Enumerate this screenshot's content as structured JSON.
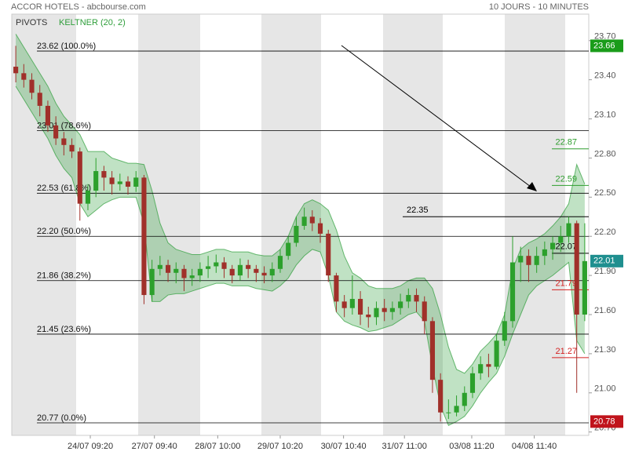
{
  "chart_data": {
    "type": "candlestick",
    "title": "ACCOR HOTELS - abcbourse.com",
    "subtitle": "10 JOURS - 10 MINUTES",
    "legend": [
      "PIVOTS",
      "KELTNER (20, 2)"
    ],
    "up_color": "#2ca02c",
    "down_color": "#a0302a",
    "band_color": "#2e9e3a",
    "xlim": [
      -0.5,
      71.5
    ],
    "xticks": [
      {
        "value": 9.3,
        "label": "24/07 09:20"
      },
      {
        "value": 17.3,
        "label": "27/07 09:40"
      },
      {
        "value": 25.2,
        "label": "28/07 10:00"
      },
      {
        "value": 33,
        "label": "29/07 10:20"
      },
      {
        "value": 40.9,
        "label": "30/07 10:40"
      },
      {
        "value": 48.5,
        "label": "31/07 11:00"
      },
      {
        "value": 56.9,
        "label": "03/08 11:20"
      },
      {
        "value": 64.7,
        "label": "04/08 11:40"
      }
    ],
    "ylim": [
      20.674,
      23.903
    ],
    "yticks": [
      {
        "value": 23.7,
        "label": "23.70"
      },
      {
        "value": 23.4,
        "label": "23.40"
      },
      {
        "value": 23.1,
        "label": "23.10"
      },
      {
        "value": 22.8,
        "label": "22.80"
      },
      {
        "value": 22.5,
        "label": "22.50"
      },
      {
        "value": 22.2,
        "label": "22.20"
      },
      {
        "value": 21.9,
        "label": "21.90"
      },
      {
        "value": 21.6,
        "label": "21.60"
      },
      {
        "value": 21.3,
        "label": "21.30"
      },
      {
        "value": 21.0,
        "label": "21.00"
      },
      {
        "value": 20.7,
        "label": "20.70"
      }
    ],
    "open": [
      23.5,
      23.45,
      23.4,
      23.3,
      23.2,
      23.05,
      22.95,
      22.9,
      22.85,
      22.45,
      22.55,
      22.7,
      22.65,
      22.6,
      22.62,
      22.58,
      22.65,
      21.75,
      21.95,
      21.98,
      21.92,
      21.95,
      21.88,
      21.9,
      21.95,
      21.97,
      22.0,
      21.95,
      21.9,
      21.98,
      21.95,
      21.92,
      21.9,
      21.95,
      22.05,
      22.15,
      22.28,
      22.35,
      22.3,
      22.22,
      21.9,
      21.7,
      21.65,
      21.72,
      21.6,
      21.58,
      21.65,
      21.62,
      21.65,
      21.7,
      21.75,
      21.7,
      21.55,
      21.1,
      20.85,
      20.85,
      20.9,
      21.0,
      21.15,
      21.22,
      21.2,
      21.4,
      21.55,
      22.0,
      22.05,
      21.98,
      22.05,
      22.1,
      22.15,
      22.2,
      22.3,
      21.6
    ],
    "high": [
      23.66,
      23.52,
      23.45,
      23.36,
      23.24,
      23.12,
      23.0,
      22.95,
      22.88,
      22.6,
      22.8,
      22.74,
      22.7,
      22.68,
      22.66,
      22.7,
      22.67,
      22.02,
      22.05,
      22.02,
      22.0,
      21.98,
      21.95,
      22.0,
      22.05,
      22.06,
      22.04,
      21.98,
      22.03,
      22.02,
      21.98,
      21.97,
      22.0,
      22.1,
      22.2,
      22.35,
      22.42,
      22.4,
      22.34,
      22.25,
      21.92,
      21.75,
      21.9,
      21.78,
      21.66,
      21.7,
      21.72,
      21.7,
      21.76,
      21.8,
      21.8,
      21.74,
      21.58,
      21.15,
      20.95,
      20.98,
      21.05,
      21.2,
      21.28,
      21.3,
      21.45,
      21.62,
      22.2,
      22.12,
      22.1,
      22.12,
      22.16,
      22.2,
      22.28,
      22.35,
      22.32,
      22.3
    ],
    "low": [
      23.38,
      23.34,
      23.25,
      23.12,
      23.0,
      22.9,
      22.82,
      22.8,
      22.32,
      22.4,
      22.5,
      22.55,
      22.52,
      22.55,
      22.52,
      22.54,
      21.68,
      21.7,
      21.9,
      21.85,
      21.84,
      21.78,
      21.82,
      21.85,
      21.88,
      21.92,
      21.88,
      21.84,
      21.86,
      21.88,
      21.85,
      21.84,
      21.85,
      21.92,
      22.02,
      22.12,
      22.25,
      22.24,
      22.15,
      21.85,
      21.62,
      21.58,
      21.6,
      21.52,
      21.5,
      21.52,
      21.55,
      21.56,
      21.6,
      21.65,
      21.62,
      21.45,
      21.0,
      20.78,
      20.8,
      20.82,
      20.86,
      20.96,
      21.1,
      21.12,
      21.18,
      21.36,
      21.5,
      21.85,
      21.85,
      21.92,
      21.98,
      22.02,
      22.08,
      22.15,
      21.0,
      21.55
    ],
    "close": [
      23.45,
      23.4,
      23.3,
      23.2,
      23.05,
      22.95,
      22.9,
      22.85,
      22.45,
      22.55,
      22.7,
      22.65,
      22.6,
      22.62,
      22.58,
      22.65,
      21.75,
      21.95,
      21.98,
      21.92,
      21.95,
      21.88,
      21.9,
      21.95,
      21.97,
      22.0,
      21.95,
      21.9,
      21.98,
      21.95,
      21.92,
      21.9,
      21.95,
      22.05,
      22.15,
      22.28,
      22.35,
      22.3,
      22.22,
      21.9,
      21.7,
      21.65,
      21.72,
      21.6,
      21.58,
      21.65,
      21.62,
      21.65,
      21.7,
      21.75,
      21.7,
      21.55,
      21.1,
      20.85,
      20.85,
      20.9,
      21.0,
      21.15,
      21.22,
      21.2,
      21.4,
      21.55,
      22.0,
      22.05,
      21.98,
      22.05,
      22.1,
      22.15,
      22.2,
      22.3,
      21.6,
      22.01
    ],
    "keltner": {
      "upper": [
        23.75,
        23.65,
        23.55,
        23.45,
        23.35,
        23.22,
        23.12,
        23.05,
        22.98,
        22.85,
        22.85,
        22.85,
        22.8,
        22.78,
        22.76,
        22.76,
        22.75,
        22.55,
        22.3,
        22.15,
        22.1,
        22.08,
        22.06,
        22.06,
        22.08,
        22.1,
        22.1,
        22.08,
        22.08,
        22.08,
        22.06,
        22.05,
        22.05,
        22.1,
        22.2,
        22.35,
        22.45,
        22.48,
        22.45,
        22.4,
        22.25,
        22.05,
        21.92,
        21.88,
        21.82,
        21.8,
        21.8,
        21.8,
        21.82,
        21.86,
        21.88,
        21.88,
        21.8,
        21.6,
        21.35,
        21.18,
        21.15,
        21.22,
        21.32,
        21.38,
        21.45,
        21.6,
        21.95,
        22.1,
        22.15,
        22.18,
        22.22,
        22.28,
        22.35,
        22.45,
        22.75,
        22.6
      ],
      "lower": [
        23.35,
        23.25,
        23.15,
        23.05,
        22.95,
        22.82,
        22.72,
        22.65,
        22.45,
        22.35,
        22.4,
        22.45,
        22.48,
        22.5,
        22.5,
        22.5,
        22.3,
        21.7,
        21.7,
        21.75,
        21.76,
        21.76,
        21.78,
        21.8,
        21.82,
        21.84,
        21.84,
        21.82,
        21.82,
        21.82,
        21.8,
        21.79,
        21.78,
        21.82,
        21.88,
        21.98,
        22.05,
        22.1,
        22.08,
        21.9,
        21.62,
        21.55,
        21.52,
        21.5,
        21.47,
        21.48,
        21.5,
        21.52,
        21.56,
        21.6,
        21.62,
        21.55,
        21.2,
        20.9,
        20.75,
        20.78,
        20.82,
        20.9,
        21.0,
        21.08,
        21.15,
        21.28,
        21.45,
        21.6,
        21.75,
        21.82,
        21.86,
        21.9,
        21.95,
        22.0,
        21.4,
        21.3
      ]
    },
    "fib_levels": [
      {
        "value": 23.62,
        "label": "23.62 (100.0%)"
      },
      {
        "value": 23.01,
        "label": "23.01 (78.6%)"
      },
      {
        "value": 22.53,
        "label": "22.53 (61.8%)"
      },
      {
        "value": 22.2,
        "label": "22.20 (50.0%)"
      },
      {
        "value": 21.86,
        "label": "21.86 (38.2%)"
      },
      {
        "value": 21.45,
        "label": "21.45 (23.6%)"
      },
      {
        "value": 20.77,
        "label": "20.77 (0.0%)"
      }
    ],
    "pivots": [
      {
        "value": 22.87,
        "color": "#2e9e2e"
      },
      {
        "value": 22.59,
        "color": "#2e9e2e"
      },
      {
        "value": 22.35,
        "color": "#000000"
      },
      {
        "value": 22.07,
        "color": "#000000"
      },
      {
        "value": 21.79,
        "color": "#d42020"
      },
      {
        "value": 21.27,
        "color": "#d42020"
      }
    ],
    "price_tags": [
      {
        "value": 23.66,
        "color": "#1a9c1a"
      },
      {
        "value": 22.01,
        "color": "#1f8f8f"
      },
      {
        "value": 20.78,
        "color": "#c0141c"
      }
    ]
  }
}
